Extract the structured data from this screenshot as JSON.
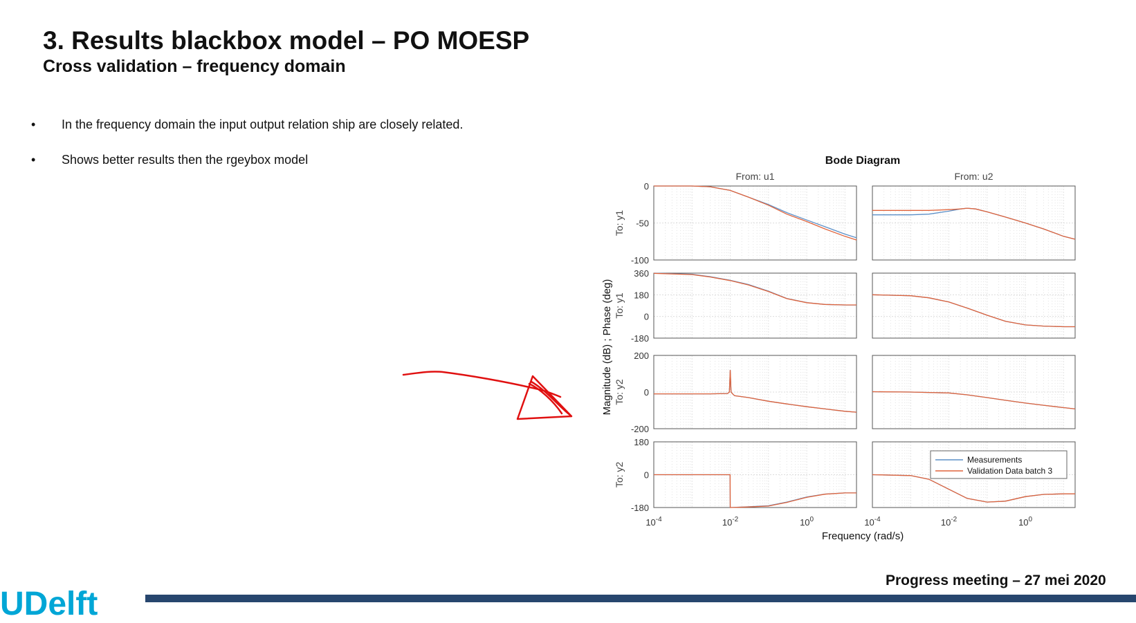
{
  "slide": {
    "title": "3. Results blackbox model – PO MOESP",
    "subtitle": "Cross validation – frequency domain",
    "bullets": [
      "In the frequency domain the input output relation ship are closely related.",
      "Shows better results then the rgeybox model"
    ],
    "bullet_glyph": "•",
    "footer": "Progress meeting – 27 mei 2020",
    "logo_text": "UDelft",
    "colors": {
      "footer_bar": "#27466e",
      "logo_accent": "#00a6d6",
      "annotation": "#e01010"
    }
  },
  "chart_data": {
    "type": "line",
    "title": "Bode Diagram",
    "xlabel": "Frequency  (rad/s)",
    "ylabel": "Magnitude (dB) ; Phase (deg)",
    "xscale": "log",
    "xlim": [
      0.0001,
      20
    ],
    "x_tick_labels": [
      {
        "base": "10",
        "exp": "-4",
        "value": 0.0001
      },
      {
        "base": "10",
        "exp": "-2",
        "value": 0.01
      },
      {
        "base": "10",
        "exp": "0",
        "value": 1
      }
    ],
    "columns": [
      "From: u1",
      "From: u2"
    ],
    "row_labels": [
      "To: y1",
      "To: y1",
      "To: y2",
      "To: y2"
    ],
    "rows": [
      {
        "kind": "magnitude",
        "ylim": [
          -100,
          0
        ],
        "yticks": [
          "0",
          "-50",
          "-100"
        ],
        "ytick_values": [
          0,
          -50,
          -100
        ]
      },
      {
        "kind": "phase",
        "ylim": [
          -180,
          360
        ],
        "yticks": [
          "360",
          "180",
          "0",
          "-180"
        ],
        "ytick_values": [
          360,
          180,
          0,
          -180
        ]
      },
      {
        "kind": "magnitude",
        "ylim": [
          -200,
          200
        ],
        "yticks": [
          "200",
          "0",
          "-200"
        ],
        "ytick_values": [
          200,
          0,
          -200
        ]
      },
      {
        "kind": "phase",
        "ylim": [
          -180,
          180
        ],
        "yticks": [
          "180",
          "0",
          "-180"
        ],
        "ytick_values": [
          180,
          0,
          -180
        ]
      }
    ],
    "legend": {
      "position": "inside-right",
      "entries": [
        {
          "name": "Measurements",
          "color": "#5b8fc7"
        },
        {
          "name": "Validation Data batch 3",
          "color": "#e0643c"
        }
      ]
    },
    "series": [
      {
        "name": "Measurements",
        "color": "#5b8fc7",
        "panels": [
          {
            "row": 0,
            "col": 0,
            "x": [
              0.0001,
              0.001,
              0.003,
              0.01,
              0.03,
              0.1,
              0.3,
              1,
              3,
              10,
              20
            ],
            "y": [
              0,
              0,
              -1,
              -6,
              -15,
              -25,
              -36,
              -46,
              -55,
              -65,
              -70
            ]
          },
          {
            "row": 0,
            "col": 1,
            "x": [
              0.0001,
              0.001,
              0.003,
              0.01,
              0.02,
              0.03,
              0.05,
              0.1,
              0.3,
              1,
              3,
              10,
              20
            ],
            "y": [
              -39,
              -39,
              -38,
              -34,
              -31,
              -30,
              -31,
              -35,
              -42,
              -50,
              -58,
              -68,
              -72
            ]
          },
          {
            "row": 1,
            "col": 0,
            "x": [
              0.0001,
              0.001,
              0.003,
              0.01,
              0.03,
              0.1,
              0.3,
              1,
              3,
              10,
              20
            ],
            "y": [
              360,
              350,
              330,
              300,
              265,
              210,
              150,
              115,
              100,
              95,
              95
            ]
          },
          {
            "row": 1,
            "col": 1,
            "x": [
              0.0001,
              0.001,
              0.003,
              0.01,
              0.03,
              0.1,
              0.3,
              1,
              3,
              10,
              20
            ],
            "y": [
              180,
              172,
              155,
              120,
              70,
              10,
              -40,
              -70,
              -80,
              -85,
              -85
            ]
          },
          {
            "row": 2,
            "col": 0,
            "x": [
              0.0001,
              0.001,
              0.003,
              0.0085,
              0.0095,
              0.01,
              0.0105,
              0.0115,
              0.013,
              0.03,
              0.1,
              0.3,
              1,
              3,
              10,
              20
            ],
            "y": [
              -10,
              -10,
              -10,
              -8,
              0,
              120,
              0,
              -10,
              -20,
              -30,
              -50,
              -65,
              -80,
              -92,
              -105,
              -110
            ]
          },
          {
            "row": 2,
            "col": 1,
            "x": [
              0.0001,
              0.001,
              0.01,
              0.03,
              0.1,
              0.3,
              1,
              3,
              10,
              20
            ],
            "y": [
              2,
              0,
              -5,
              -15,
              -30,
              -45,
              -60,
              -72,
              -85,
              -92
            ]
          },
          {
            "row": 3,
            "col": 0,
            "x": [
              0.0001,
              0.001,
              0.0099,
              0.01,
              0.03,
              0.1,
              0.3,
              1,
              3,
              10,
              20
            ],
            "y": [
              0,
              0,
              0,
              -180,
              -176,
              -170,
              -150,
              -122,
              -106,
              -100,
              -100
            ]
          },
          {
            "row": 3,
            "col": 1,
            "x": [
              0.0001,
              0.001,
              0.003,
              0.01,
              0.03,
              0.1,
              0.3,
              1,
              3,
              10,
              20
            ],
            "y": [
              0,
              -5,
              -25,
              -80,
              -130,
              -150,
              -145,
              -120,
              -108,
              -105,
              -105
            ]
          }
        ]
      },
      {
        "name": "Validation Data batch 3",
        "color": "#e0643c",
        "panels": [
          {
            "row": 0,
            "col": 0,
            "x": [
              0.0001,
              0.001,
              0.003,
              0.01,
              0.03,
              0.1,
              0.3,
              1,
              3,
              10,
              20
            ],
            "y": [
              0,
              0,
              -1,
              -6,
              -15,
              -26,
              -38,
              -48,
              -58,
              -68,
              -73
            ]
          },
          {
            "row": 0,
            "col": 1,
            "x": [
              0.0001,
              0.001,
              0.003,
              0.01,
              0.02,
              0.03,
              0.05,
              0.1,
              0.3,
              1,
              3,
              10,
              20
            ],
            "y": [
              -33,
              -33,
              -33,
              -32,
              -31,
              -30,
              -31,
              -35,
              -42,
              -50,
              -58,
              -68,
              -72
            ]
          },
          {
            "row": 1,
            "col": 0,
            "x": [
              0.0001,
              0.001,
              0.003,
              0.01,
              0.03,
              0.1,
              0.3,
              1,
              3,
              10,
              20
            ],
            "y": [
              358,
              348,
              328,
              298,
              262,
              207,
              148,
              114,
              100,
              96,
              96
            ]
          },
          {
            "row": 1,
            "col": 1,
            "x": [
              0.0001,
              0.001,
              0.003,
              0.01,
              0.03,
              0.1,
              0.3,
              1,
              3,
              10,
              20
            ],
            "y": [
              180,
              172,
              155,
              120,
              70,
              10,
              -40,
              -70,
              -80,
              -85,
              -85
            ]
          },
          {
            "row": 2,
            "col": 0,
            "x": [
              0.0001,
              0.001,
              0.003,
              0.0085,
              0.0095,
              0.01,
              0.0105,
              0.0115,
              0.013,
              0.03,
              0.1,
              0.3,
              1,
              3,
              10,
              20
            ],
            "y": [
              -10,
              -10,
              -10,
              -8,
              0,
              120,
              0,
              -10,
              -20,
              -30,
              -50,
              -65,
              -80,
              -92,
              -105,
              -110
            ]
          },
          {
            "row": 2,
            "col": 1,
            "x": [
              0.0001,
              0.001,
              0.01,
              0.03,
              0.1,
              0.3,
              1,
              3,
              10,
              20
            ],
            "y": [
              2,
              0,
              -5,
              -15,
              -30,
              -45,
              -60,
              -72,
              -85,
              -92
            ]
          },
          {
            "row": 3,
            "col": 0,
            "x": [
              0.0001,
              0.001,
              0.0099,
              0.01,
              0.03,
              0.1,
              0.3,
              1,
              3,
              10,
              20
            ],
            "y": [
              0,
              0,
              0,
              -180,
              -177,
              -172,
              -152,
              -124,
              -107,
              -100,
              -100
            ]
          },
          {
            "row": 3,
            "col": 1,
            "x": [
              0.0001,
              0.001,
              0.003,
              0.01,
              0.03,
              0.1,
              0.3,
              1,
              3,
              10,
              20
            ],
            "y": [
              0,
              -5,
              -25,
              -80,
              -130,
              -150,
              -145,
              -120,
              -108,
              -105,
              -105
            ]
          }
        ]
      }
    ]
  }
}
